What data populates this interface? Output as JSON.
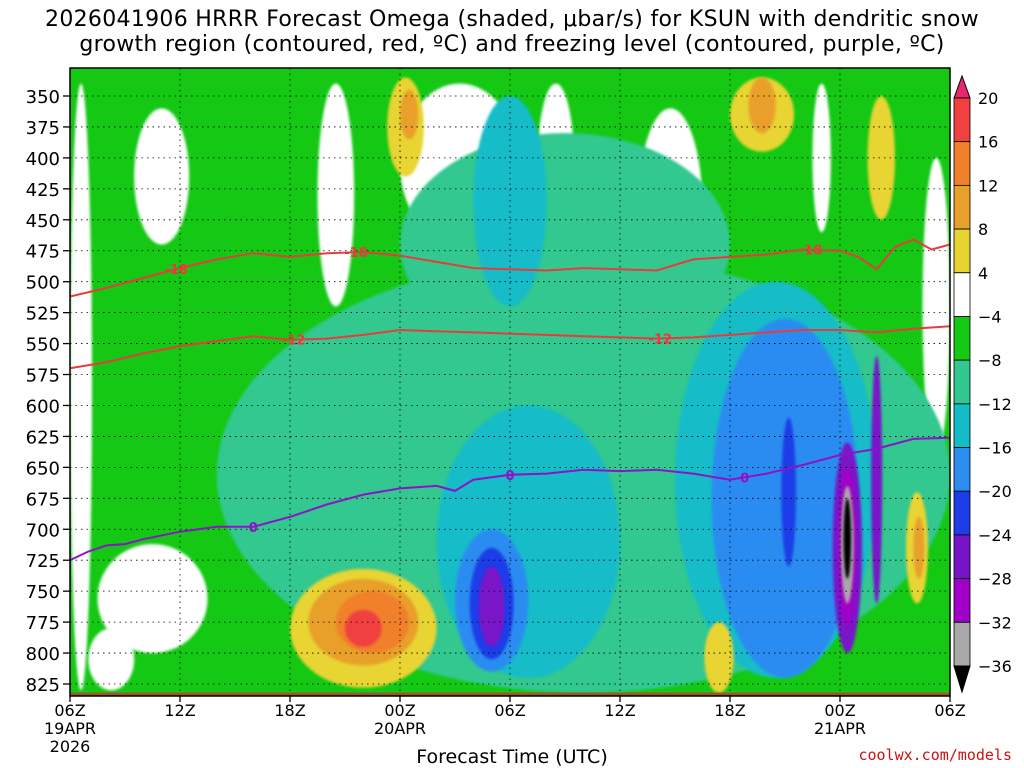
{
  "title_line1": "2026041906 HRRR Forecast Omega (shaded, μbar/s) for KSUN with dendritic snow",
  "title_line2": "growth region (contoured, red, ºC) and freezing level (contoured, purple, ºC)",
  "xlabel": "Forecast Time (UTC)",
  "credit": "coolwx.com/models",
  "chart_data": {
    "type": "heatmap",
    "title": "2026041906 HRRR Forecast Omega (shaded, μbar/s) for KSUN with dendritic snow growth region (contoured, red, ºC) and freezing level (contoured, purple, ºC)",
    "xlabel": "Forecast Time (UTC)",
    "ylabel": "",
    "x_ticks": [
      {
        "label": "06Z",
        "sub": [
          "19APR",
          "2026"
        ],
        "hour": 0
      },
      {
        "label": "12Z",
        "sub": [],
        "hour": 6
      },
      {
        "label": "18Z",
        "sub": [],
        "hour": 12
      },
      {
        "label": "00Z",
        "sub": [
          "20APR"
        ],
        "hour": 18
      },
      {
        "label": "06Z",
        "sub": [],
        "hour": 24
      },
      {
        "label": "12Z",
        "sub": [],
        "hour": 30
      },
      {
        "label": "18Z",
        "sub": [],
        "hour": 36
      },
      {
        "label": "00Z",
        "sub": [
          "21APR"
        ],
        "hour": 42
      },
      {
        "label": "06Z",
        "sub": [],
        "hour": 48
      }
    ],
    "xlim": [
      0,
      48
    ],
    "y_ticks": [
      350,
      375,
      400,
      425,
      450,
      475,
      500,
      525,
      550,
      575,
      600,
      625,
      650,
      675,
      700,
      725,
      750,
      775,
      800,
      825
    ],
    "ylim": [
      335,
      837
    ],
    "y_inverted": true,
    "ground_level": 832,
    "colorbar": {
      "labels": [
        "20",
        "16",
        "12",
        "8",
        "4",
        "−4",
        "−8",
        "−12",
        "−16",
        "−20",
        "−24",
        "−28",
        "−32",
        "−36"
      ],
      "colors": [
        "#e8286e",
        "#f04040",
        "#f0802c",
        "#e8a02c",
        "#e8d430",
        "#ffffff",
        "#14c814",
        "#30c890",
        "#14bcc8",
        "#2c8cf0",
        "#1e3ce8",
        "#7814c8",
        "#a000c8",
        "#a8a8a8",
        "#000000"
      ]
    },
    "shading_levels": [
      {
        "range": "-8 to -4",
        "color": "#14c814"
      },
      {
        "range": "-12 to -8",
        "color": "#30c890"
      },
      {
        "range": "-16 to -12",
        "color": "#14bcc8"
      },
      {
        "range": "-20 to -16",
        "color": "#2c8cf0"
      },
      {
        "range": "-24 to -20",
        "color": "#1e3ce8"
      },
      {
        "range": "-28 to -24",
        "color": "#7814c8"
      },
      {
        "range": "-32 to -28",
        "color": "#a000c8"
      },
      {
        "range": "-36 to -32",
        "color": "#a8a8a8"
      },
      {
        "range": "< -36",
        "color": "#000000"
      },
      {
        "range": "4 to 8",
        "color": "#e8d430"
      },
      {
        "range": "8 to 12",
        "color": "#e8a02c"
      },
      {
        "range": "12 to 16",
        "color": "#f0802c"
      },
      {
        "range": "16 to 20",
        "color": "#f04040"
      }
    ],
    "contours": [
      {
        "name": "-18",
        "color": "#e83c3c",
        "labels": [
          {
            "text": "-18",
            "hour": 5.8
          },
          {
            "text": "-18",
            "hour": 15.6
          },
          {
            "text": "-18",
            "hour": 40.4
          }
        ],
        "x": [
          0,
          2,
          4,
          6,
          8,
          10,
          12,
          14,
          16,
          18,
          20,
          22,
          24,
          26,
          28,
          30,
          32,
          34,
          36,
          38,
          40,
          42,
          43,
          44,
          45,
          46,
          47,
          48
        ],
        "y": [
          512,
          505,
          497,
          489,
          482,
          477,
          480,
          477,
          476,
          479,
          484,
          489,
          490,
          491,
          489,
          490,
          491,
          482,
          480,
          478,
          474,
          475,
          480,
          490,
          472,
          466,
          474,
          470
        ]
      },
      {
        "name": "-12",
        "color": "#e83c3c",
        "labels": [
          {
            "text": "-12",
            "hour": 12.2
          },
          {
            "text": "-12",
            "hour": 32.2
          }
        ],
        "x": [
          0,
          2,
          4,
          6,
          8,
          10,
          12,
          14,
          16,
          18,
          20,
          22,
          24,
          26,
          28,
          30,
          32,
          34,
          36,
          38,
          40,
          42,
          44,
          46,
          48
        ],
        "y": [
          570,
          565,
          558,
          552,
          548,
          544,
          547,
          546,
          543,
          539,
          540,
          541,
          542,
          543,
          544,
          545,
          546,
          545,
          543,
          541,
          539,
          539,
          541,
          538,
          536
        ]
      },
      {
        "name": "0",
        "color": "#8c14c8",
        "labels": [
          {
            "text": "0",
            "hour": 10.0
          },
          {
            "text": "0",
            "hour": 24.0
          },
          {
            "text": "0",
            "hour": 36.8
          }
        ],
        "x": [
          0,
          1,
          2,
          3,
          4,
          6,
          8,
          10,
          12,
          14,
          16,
          18,
          20,
          21,
          22,
          24,
          26,
          28,
          30,
          32,
          34,
          36,
          38,
          40,
          42,
          44,
          46,
          48
        ],
        "y": [
          725,
          718,
          713,
          712,
          708,
          702,
          698,
          698,
          690,
          680,
          672,
          667,
          665,
          669,
          660,
          656,
          655,
          652,
          653,
          652,
          655,
          660,
          655,
          648,
          640,
          635,
          627,
          626
        ]
      }
    ],
    "shaded_regions": [
      {
        "level": "-8 to -4",
        "approx_hours": [
          0,
          48
        ],
        "approx_pressure": [
          335,
          832
        ],
        "note": "broad background of weak ascent"
      },
      {
        "level": "4 to 8",
        "approx_hours": [
          12,
          20
        ],
        "approx_pressure": [
          732,
          828
        ]
      },
      {
        "level": "8 to 12",
        "approx_hours": [
          13,
          19
        ],
        "approx_pressure": [
          740,
          810
        ]
      },
      {
        "level": "12 to 16",
        "approx_hours": [
          14.5,
          18.5
        ],
        "approx_pressure": [
          750,
          800
        ]
      },
      {
        "level": "16 to 20",
        "approx_hours": [
          15,
          17
        ],
        "approx_pressure": [
          765,
          795
        ]
      },
      {
        "level": "4 to 8",
        "approx_hours": [
          17.3,
          19.3
        ],
        "approx_pressure": [
          335,
          415
        ]
      },
      {
        "level": "8 to 12",
        "approx_hours": [
          18.0,
          19.0
        ],
        "approx_pressure": [
          345,
          385
        ]
      },
      {
        "level": "-20 to -16",
        "approx_hours": [
          21,
          25
        ],
        "approx_pressure": [
          700,
          815
        ]
      },
      {
        "level": "-24 to -20",
        "approx_hours": [
          21.8,
          24.2
        ],
        "approx_pressure": [
          715,
          805
        ]
      },
      {
        "level": "-28 to -24",
        "approx_hours": [
          22.3,
          23.7
        ],
        "approx_pressure": [
          730,
          795
        ]
      },
      {
        "level": "-20 to -16",
        "approx_hours": [
          35,
          43
        ],
        "approx_pressure": [
          530,
          820
        ]
      },
      {
        "level": "-24 to -20",
        "approx_hours": [
          38.8,
          39.6
        ],
        "approx_pressure": [
          610,
          730
        ]
      },
      {
        "level": "-28 to -24",
        "approx_hours": [
          41.6,
          43.2
        ],
        "approx_pressure": [
          630,
          800
        ]
      },
      {
        "level": "-32 to -28",
        "approx_hours": [
          41.9,
          42.9
        ],
        "approx_pressure": [
          650,
          780
        ]
      },
      {
        "level": "-36 to -32",
        "approx_hours": [
          42.05,
          42.75
        ],
        "approx_pressure": [
          665,
          760
        ]
      },
      {
        "level": "< -36",
        "approx_hours": [
          42.2,
          42.6
        ],
        "approx_pressure": [
          675,
          740
        ]
      },
      {
        "level": "-28 to -24",
        "approx_hours": [
          43.7,
          44.3
        ],
        "approx_pressure": [
          560,
          760
        ]
      },
      {
        "level": "4 to 8",
        "approx_hours": [
          45.6,
          46.8
        ],
        "approx_pressure": [
          670,
          760
        ]
      },
      {
        "level": "8 to 12",
        "approx_hours": [
          46.0,
          46.6
        ],
        "approx_pressure": [
          690,
          740
        ]
      },
      {
        "level": "4 to 8",
        "approx_hours": [
          34.6,
          36.2
        ],
        "approx_pressure": [
          775,
          832
        ]
      },
      {
        "level": "4 to 8",
        "approx_hours": [
          36.0,
          39.5
        ],
        "approx_pressure": [
          335,
          395
        ]
      },
      {
        "level": "8 to 12",
        "approx_hours": [
          37.0,
          38.5
        ],
        "approx_pressure": [
          335,
          380
        ]
      },
      {
        "level": "4 to 8",
        "approx_hours": [
          43.5,
          45.0
        ],
        "approx_pressure": [
          350,
          450
        ]
      }
    ]
  }
}
